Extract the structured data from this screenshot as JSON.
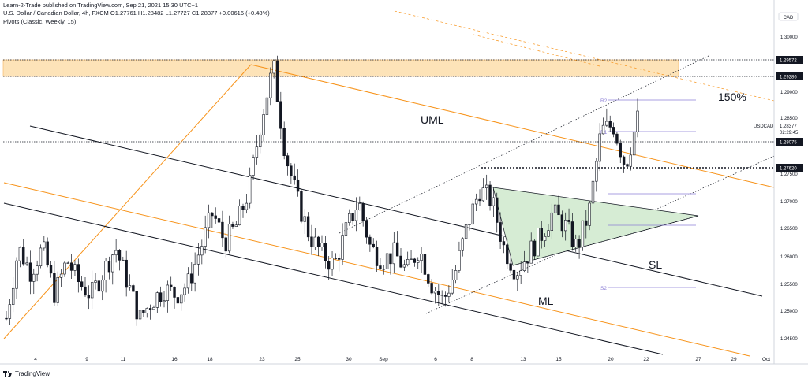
{
  "header": {
    "published": "Learn-2-Trade published on TradingView.com, Sep 21, 2021 15:30 UTC+1",
    "symbol": "U.S. Dollar / Canadian Dollar, 4h, FXCM",
    "ohlc": "O1.27761  H1.28482  L1.27727  C1.28377  +0.00616 (+0.48%)",
    "indicator": "Pivots (Classic, Weekly, 15)"
  },
  "footer": {
    "brand": "TradingView"
  },
  "colors": {
    "candle_up": "#ffffff",
    "candle_down": "#131722",
    "orange": "#f7931a",
    "zone": "#fde3b8",
    "triangle": "#d6ecd4",
    "pivot": "#8c7fd6",
    "black_line": "#131722"
  },
  "chart_data": {
    "type": "candlestick",
    "symbol": "USDCAD",
    "timeframe": "4h",
    "price_scale_label": "CAD",
    "ylim": [
      1.2425,
      1.3035
    ],
    "y_ticks": [
      "1.30000",
      "1.29000",
      "1.28500",
      "1.27500",
      "1.27000",
      "1.26500",
      "1.26000",
      "1.25500",
      "1.25000",
      "1.24500"
    ],
    "x_ticks": [
      "4",
      "9",
      "11",
      "16",
      "18",
      "23",
      "25",
      "30",
      "Sep",
      "6",
      "8",
      "13",
      "15",
      "20",
      "22",
      "27",
      "29",
      "Oct"
    ],
    "price_labels": [
      "1.29572",
      "1.29286",
      "1.28075",
      "1.27620"
    ],
    "current": {
      "name": "USDCAD",
      "price": "1.28377",
      "countdown": "02:29:45"
    },
    "pivots": [
      "R2",
      "R1",
      "S2"
    ],
    "annotations": [
      "UML",
      "150%",
      "SL",
      "ML"
    ],
    "close_path": [
      1.25,
      1.262,
      1.258,
      1.262,
      1.254,
      1.26,
      1.256,
      1.254,
      1.258,
      1.262,
      1.256,
      1.25,
      1.253,
      1.255,
      1.254,
      1.256,
      1.262,
      1.268,
      1.263,
      1.266,
      1.272,
      1.284,
      1.293,
      1.278,
      1.27,
      1.264,
      1.261,
      1.259,
      1.265,
      1.27,
      1.262,
      1.26,
      1.261,
      1.258,
      1.262,
      1.256,
      1.253,
      1.258,
      1.266,
      1.272,
      1.27,
      1.262,
      1.258,
      1.261,
      1.264,
      1.268,
      1.266,
      1.262,
      1.268,
      1.282,
      1.283,
      1.276,
      1.284
    ]
  }
}
